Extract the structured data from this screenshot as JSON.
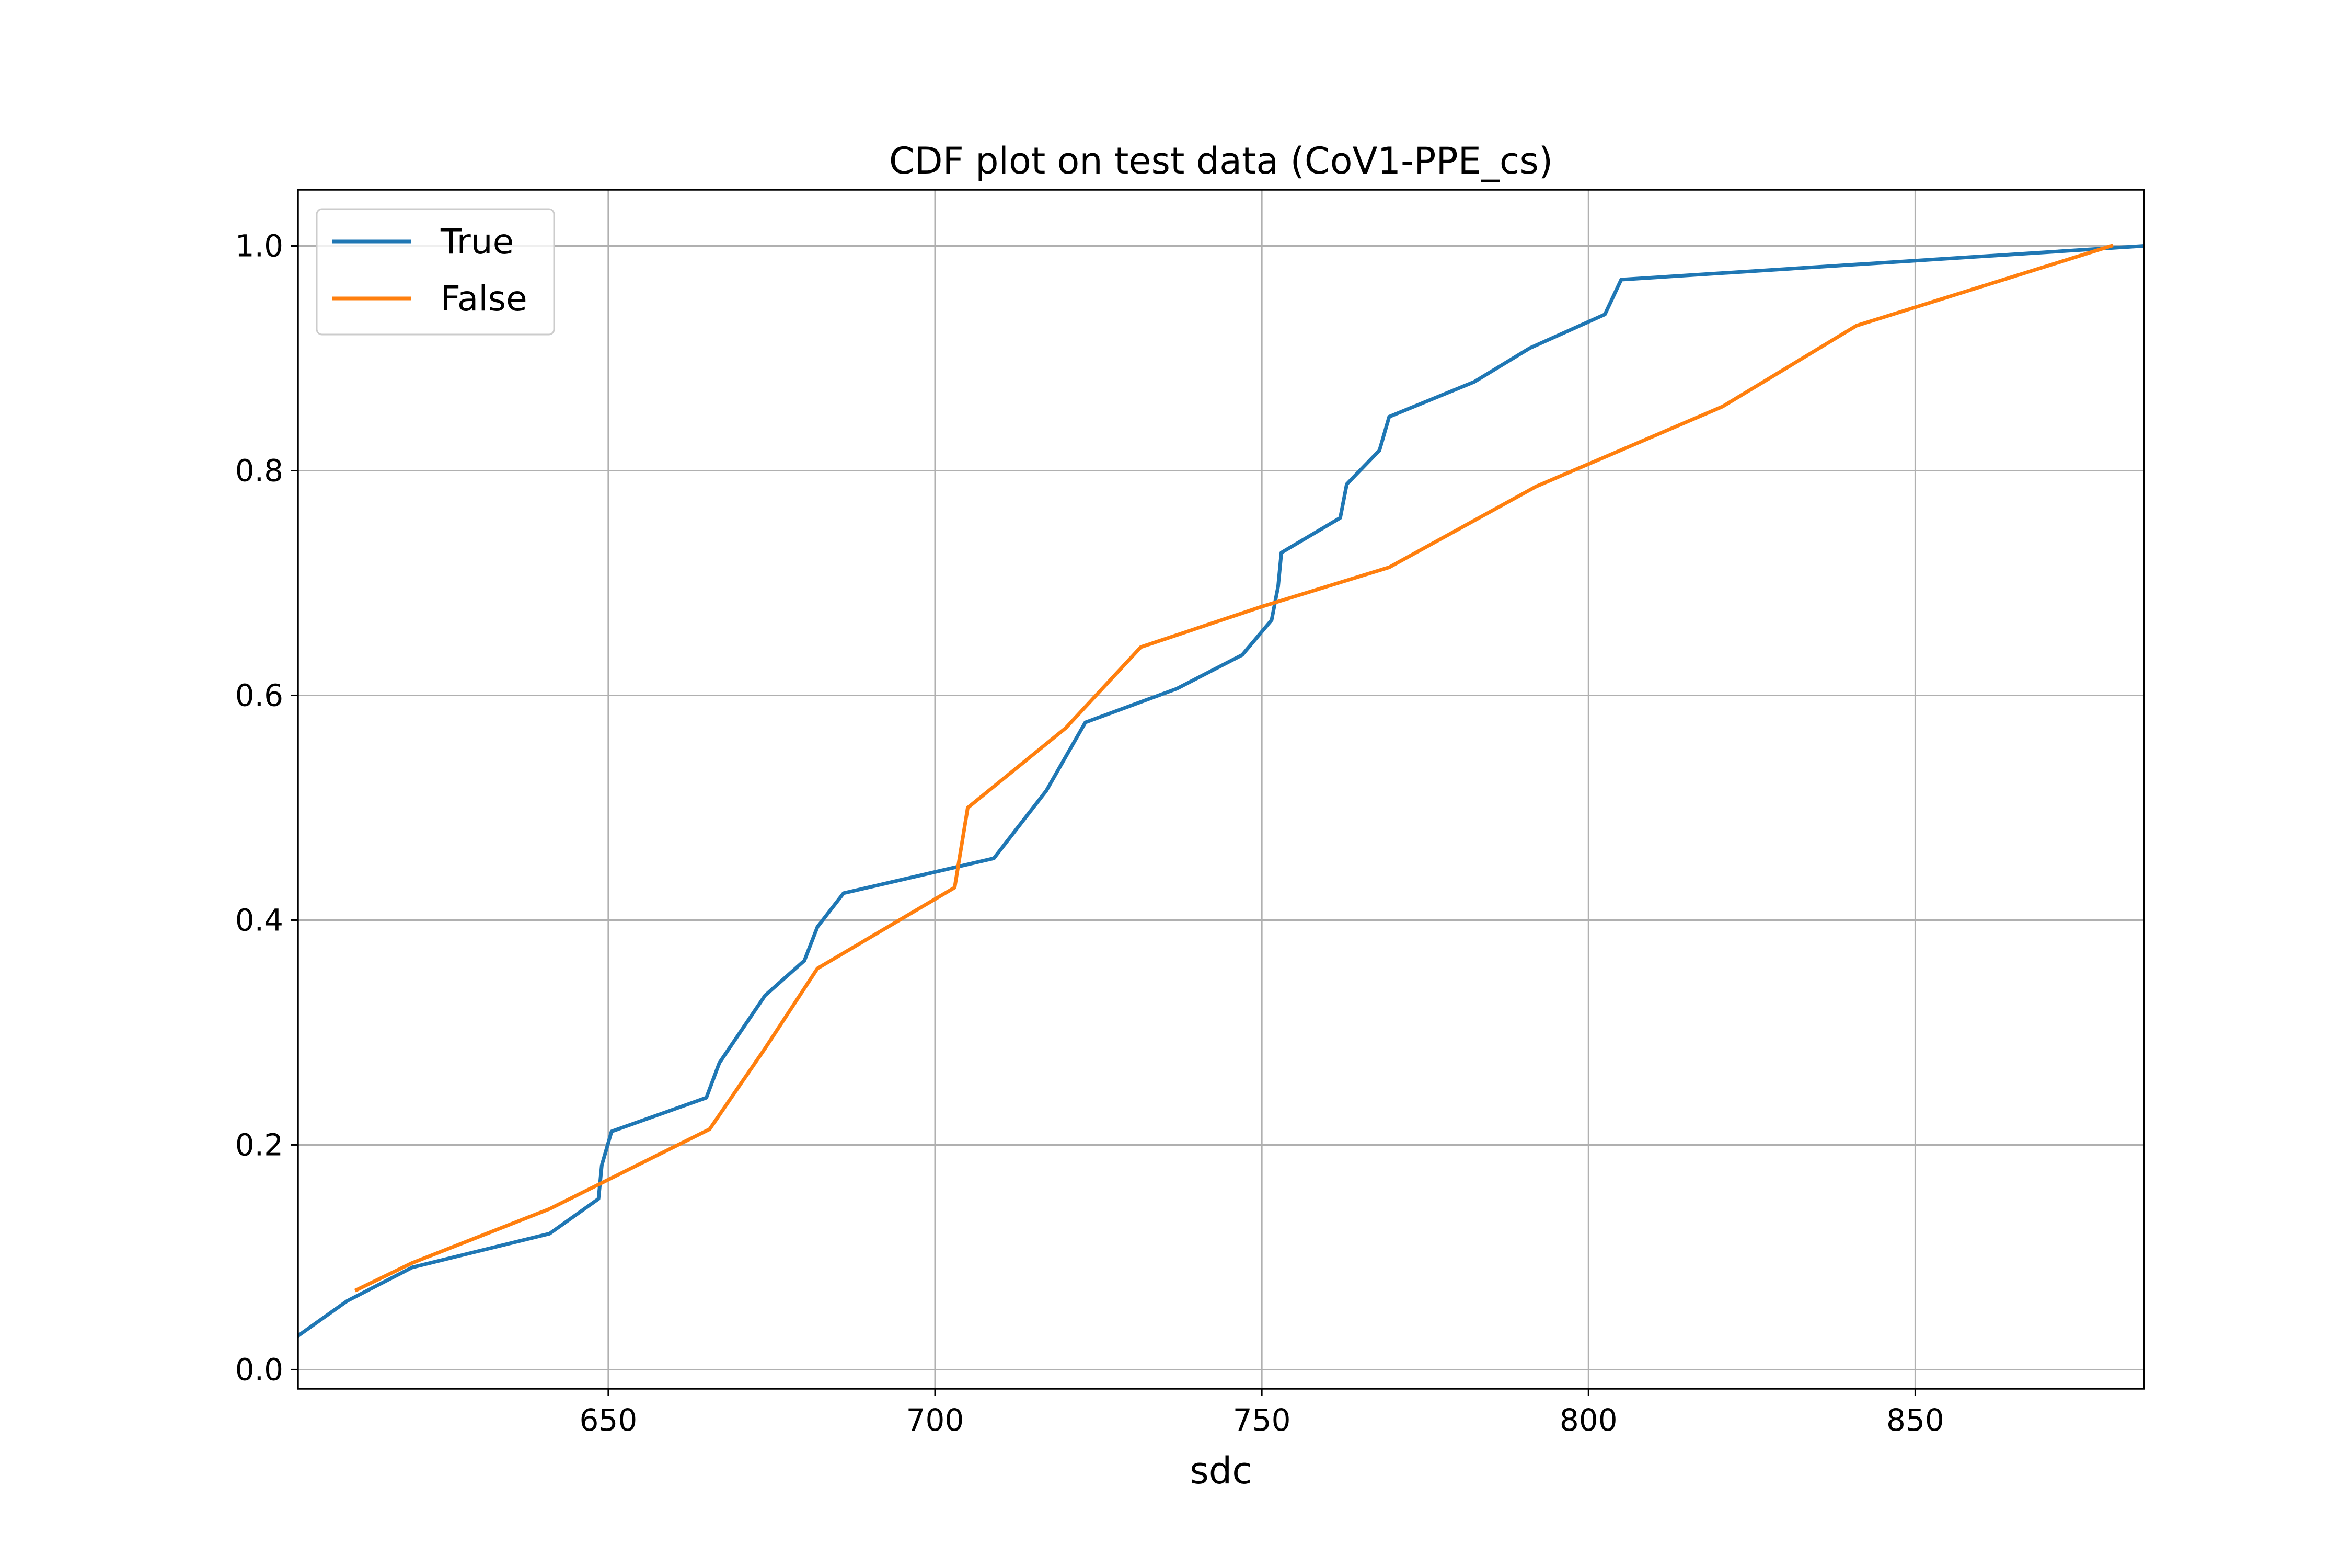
{
  "chart_data": {
    "type": "line",
    "title": "CDF plot on test data (CoV1-PPE_cs)",
    "xlabel": "sdc",
    "ylabel": "",
    "xlim": [
      602.5,
      885
    ],
    "ylim": [
      -0.017,
      1.05
    ],
    "xticks": [
      650,
      700,
      750,
      800,
      850
    ],
    "xtick_labels": [
      "650",
      "700",
      "750",
      "800",
      "850"
    ],
    "yticks": [
      0.0,
      0.2,
      0.4,
      0.6,
      0.8,
      1.0
    ],
    "ytick_labels": [
      "0.0",
      "0.2",
      "0.4",
      "0.6",
      "0.8",
      "1.0"
    ],
    "grid": true,
    "legend_position": "top-left",
    "series": [
      {
        "name": "True",
        "color": "#1f77b4",
        "x": [
          602.5,
          610,
          620,
          641,
          648.5,
          649,
          650.5,
          665,
          667,
          674,
          680,
          682,
          686,
          709,
          713,
          717,
          723,
          737,
          747,
          751.5,
          752.5,
          753,
          762,
          763,
          768,
          769.5,
          782.5,
          791,
          802.5,
          805,
          885
        ],
        "y": [
          0.03,
          0.061,
          0.091,
          0.121,
          0.152,
          0.182,
          0.212,
          0.242,
          0.273,
          0.333,
          0.364,
          0.394,
          0.424,
          0.455,
          0.485,
          0.515,
          0.576,
          0.606,
          0.636,
          0.667,
          0.697,
          0.727,
          0.758,
          0.788,
          0.818,
          0.848,
          0.879,
          0.909,
          0.939,
          0.97,
          1.0
        ]
      },
      {
        "name": "False",
        "color": "#ff7f0e",
        "x": [
          611.5,
          620,
          641,
          665.5,
          674,
          682,
          703,
          705,
          720,
          731.5,
          750,
          769.5,
          792,
          820.5,
          841,
          880
        ],
        "y": [
          0.071,
          0.095,
          0.143,
          0.214,
          0.286,
          0.357,
          0.429,
          0.5,
          0.571,
          0.643,
          0.679,
          0.714,
          0.786,
          0.857,
          0.929,
          1.0
        ]
      }
    ]
  }
}
